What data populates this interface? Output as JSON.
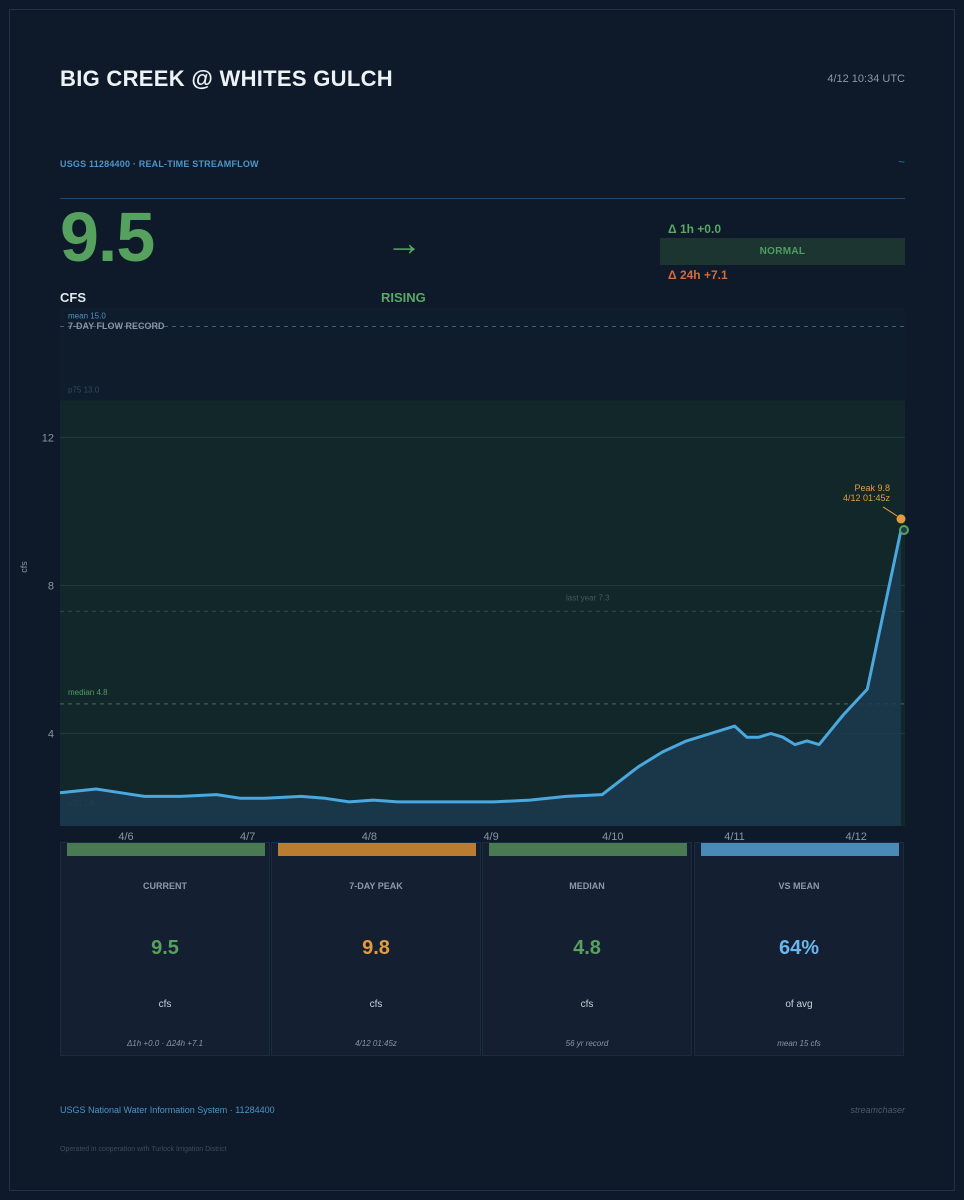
{
  "header": {
    "title": "BIG CREEK @ WHITES GULCH",
    "timestamp": "4/12  10:34 UTC",
    "subtitle": "USGS 11284400  ·  REAL-TIME STREAMFLOW",
    "tilde": "~"
  },
  "current": {
    "value": "9.5",
    "unit": "CFS",
    "trend_arrow": "→",
    "trend_label": "RISING",
    "delta_1h": "Δ 1h  +0.0",
    "status": "NORMAL",
    "delta_24h": "Δ 24h  +7.1"
  },
  "colors": {
    "green": "#56a15e",
    "orange": "#e39c3b",
    "blue": "#4c95c9",
    "line": "#4aa8de",
    "red": "#d7693b"
  },
  "chart_data": {
    "type": "area",
    "title": "7-DAY FLOW RECORD",
    "ylabel": "cfs",
    "ylim": [
      1.5,
      15.5
    ],
    "y_ticks": [
      4,
      8,
      12
    ],
    "x_ticks": [
      "4/6",
      "4/7",
      "4/8",
      "4/9",
      "4/10",
      "4/11",
      "4/12"
    ],
    "reference_lines": [
      {
        "name": "mean",
        "label": "mean  15.0",
        "value": 15.0
      },
      {
        "name": "p75",
        "label": "p75  13.0",
        "value": 13.0
      },
      {
        "name": "last-year",
        "label": "last year  7.3",
        "value": 7.3
      },
      {
        "name": "median",
        "label": "median  4.8",
        "value": 4.8
      },
      {
        "name": "p25",
        "label": "p25  1.8",
        "value": 1.8
      }
    ],
    "normal_band": [
      1.8,
      13.0
    ],
    "peak": {
      "label": "Peak  9.8",
      "time": "4/12  01:45z",
      "value": 9.8
    },
    "series": [
      {
        "name": "flow",
        "x": [
          0,
          0.3,
          0.5,
          0.7,
          1.0,
          1.3,
          1.5,
          1.7,
          2.0,
          2.2,
          2.4,
          2.6,
          2.8,
          3.0,
          3.3,
          3.6,
          3.9,
          4.2,
          4.5,
          4.8,
          5.0,
          5.2,
          5.4,
          5.6,
          5.7,
          5.8,
          5.9,
          6.0,
          6.1,
          6.2,
          6.3,
          6.5,
          6.7,
          6.85,
          6.98
        ],
        "values": [
          2.4,
          2.5,
          2.4,
          2.3,
          2.3,
          2.35,
          2.25,
          2.25,
          2.3,
          2.25,
          2.15,
          2.2,
          2.15,
          2.15,
          2.15,
          2.15,
          2.2,
          2.3,
          2.35,
          3.1,
          3.5,
          3.8,
          4.0,
          4.2,
          3.9,
          3.9,
          4.0,
          3.9,
          3.7,
          3.8,
          3.7,
          4.5,
          5.2,
          7.5,
          9.5
        ]
      }
    ]
  },
  "cards": [
    {
      "label": "CURRENT",
      "value": "9.5",
      "sub": "cfs",
      "note": "Δ1h +0.0  ·  Δ24h +7.1",
      "color": "#56a15e",
      "bar": "#4a7a52"
    },
    {
      "label": "7-DAY PEAK",
      "value": "9.8",
      "sub": "cfs",
      "note": "4/12 01:45z",
      "color": "#e39c3b",
      "bar": "#b97c30"
    },
    {
      "label": "MEDIAN",
      "value": "4.8",
      "sub": "cfs",
      "note": "56 yr record",
      "color": "#56a15e",
      "bar": "#4a7a52"
    },
    {
      "label": "VS MEAN",
      "value": "64%",
      "sub": "of avg",
      "note": "mean 15 cfs",
      "color": "#6bb6ec",
      "bar": "#4a8ab8"
    }
  ],
  "footer": {
    "source": "USGS National Water Information System  ·  11284400",
    "brand": "streamchaser",
    "cooperation": "Operated in cooperation with Turlock Irrigation District"
  }
}
